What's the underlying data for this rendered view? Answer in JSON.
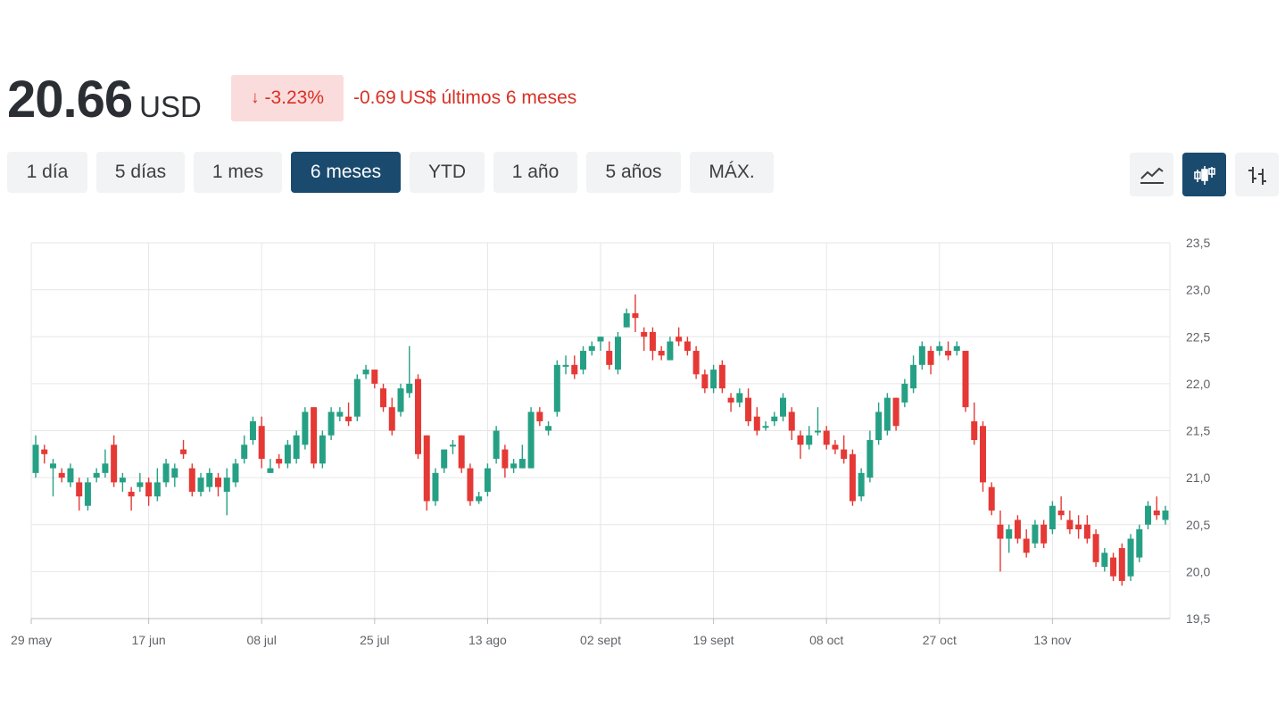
{
  "quote": {
    "price": "20.66",
    "currency": "USD",
    "change_pct": "-3.23%",
    "change_abs": "-0.69",
    "change_suffix": "US$ últimos 6 meses"
  },
  "ranges": [
    {
      "label": "1 día",
      "active": false
    },
    {
      "label": "5 días",
      "active": false
    },
    {
      "label": "1 mes",
      "active": false
    },
    {
      "label": "6 meses",
      "active": true
    },
    {
      "label": "YTD",
      "active": false
    },
    {
      "label": "1 año",
      "active": false
    },
    {
      "label": "5 años",
      "active": false
    },
    {
      "label": "MÁX.",
      "active": false
    }
  ],
  "chart_types": [
    {
      "icon": "line-chart-icon",
      "active": false
    },
    {
      "icon": "candlestick-chart-icon",
      "active": true
    },
    {
      "icon": "ohlc-bars-icon",
      "active": false
    }
  ],
  "colors": {
    "up": "#26a085",
    "down": "#e53935",
    "accent": "#1a4a6e",
    "negative_text": "#d93025"
  },
  "chart_data": {
    "type": "candlestick",
    "title": "",
    "xlabel": "",
    "ylabel": "",
    "ylim": [
      19.5,
      23.5
    ],
    "y_ticks": [
      "23,5",
      "23,0",
      "22,5",
      "22,0",
      "21,5",
      "21,0",
      "20,5",
      "20,0",
      "19,5"
    ],
    "y_tick_values": [
      23.5,
      23.0,
      22.5,
      22.0,
      21.5,
      21.0,
      20.5,
      20.0,
      19.5
    ],
    "x_ticks": [
      {
        "label": "29 may",
        "index": 0
      },
      {
        "label": "17 jun",
        "index": 13
      },
      {
        "label": "08 jul",
        "index": 26
      },
      {
        "label": "25 jul",
        "index": 39
      },
      {
        "label": "13 ago",
        "index": 52
      },
      {
        "label": "02 sept",
        "index": 65
      },
      {
        "label": "19 sept",
        "index": 78
      },
      {
        "label": "08 oct",
        "index": 91
      },
      {
        "label": "27 oct",
        "index": 104
      },
      {
        "label": "13 nov",
        "index": 117
      }
    ],
    "grid": true,
    "candles": [
      [
        21.05,
        21.35,
        21.45,
        21.0
      ],
      [
        21.3,
        21.25,
        21.35,
        21.15
      ],
      [
        21.1,
        21.15,
        21.2,
        20.8
      ],
      [
        21.05,
        21.0,
        21.1,
        20.95
      ],
      [
        20.95,
        21.1,
        21.15,
        20.9
      ],
      [
        20.95,
        20.8,
        21.0,
        20.65
      ],
      [
        20.7,
        20.95,
        21.0,
        20.65
      ],
      [
        21.0,
        21.05,
        21.1,
        20.95
      ],
      [
        21.05,
        21.15,
        21.3,
        21.0
      ],
      [
        21.35,
        20.95,
        21.45,
        20.9
      ],
      [
        20.95,
        21.0,
        21.05,
        20.85
      ],
      [
        20.85,
        20.8,
        20.9,
        20.65
      ],
      [
        20.9,
        20.95,
        21.05,
        20.85
      ],
      [
        20.95,
        20.8,
        21.0,
        20.7
      ],
      [
        20.8,
        20.95,
        21.1,
        20.75
      ],
      [
        20.95,
        21.15,
        21.2,
        20.9
      ],
      [
        21.0,
        21.1,
        21.15,
        20.9
      ],
      [
        21.3,
        21.25,
        21.4,
        21.2
      ],
      [
        21.1,
        20.85,
        21.15,
        20.8
      ],
      [
        20.85,
        21.0,
        21.05,
        20.8
      ],
      [
        20.9,
        21.05,
        21.1,
        20.85
      ],
      [
        21.0,
        20.9,
        21.05,
        20.8
      ],
      [
        20.85,
        21.0,
        21.1,
        20.6
      ],
      [
        20.95,
        21.15,
        21.2,
        20.9
      ],
      [
        21.2,
        21.35,
        21.45,
        21.15
      ],
      [
        21.4,
        21.6,
        21.65,
        21.35
      ],
      [
        21.55,
        21.2,
        21.65,
        21.1
      ],
      [
        21.05,
        21.1,
        21.2,
        21.05
      ],
      [
        21.2,
        21.15,
        21.25,
        21.1
      ],
      [
        21.15,
        21.35,
        21.4,
        21.1
      ],
      [
        21.2,
        21.45,
        21.5,
        21.15
      ],
      [
        21.35,
        21.7,
        21.75,
        21.3
      ],
      [
        21.75,
        21.15,
        21.75,
        21.1
      ],
      [
        21.15,
        21.45,
        21.5,
        21.1
      ],
      [
        21.45,
        21.7,
        21.75,
        21.4
      ],
      [
        21.65,
        21.7,
        21.75,
        21.6
      ],
      [
        21.65,
        21.6,
        21.8,
        21.55
      ],
      [
        21.65,
        22.05,
        22.1,
        21.6
      ],
      [
        22.1,
        22.15,
        22.2,
        22.05
      ],
      [
        22.15,
        22.0,
        22.15,
        21.95
      ],
      [
        21.95,
        21.75,
        22.0,
        21.7
      ],
      [
        21.75,
        21.5,
        21.85,
        21.45
      ],
      [
        21.7,
        21.95,
        22.0,
        21.65
      ],
      [
        21.9,
        22.0,
        22.4,
        21.85
      ],
      [
        22.05,
        21.25,
        22.1,
        21.2
      ],
      [
        21.45,
        20.75,
        21.45,
        20.65
      ],
      [
        20.75,
        21.05,
        21.1,
        20.7
      ],
      [
        21.1,
        21.3,
        21.3,
        21.05
      ],
      [
        21.35,
        21.35,
        21.4,
        21.25
      ],
      [
        21.45,
        21.1,
        21.45,
        21.05
      ],
      [
        21.1,
        20.75,
        21.15,
        20.7
      ],
      [
        20.75,
        20.8,
        20.85,
        20.72
      ],
      [
        20.85,
        21.1,
        21.15,
        20.8
      ],
      [
        21.2,
        21.5,
        21.55,
        21.15
      ],
      [
        21.3,
        21.1,
        21.35,
        21.0
      ],
      [
        21.1,
        21.15,
        21.2,
        21.05
      ],
      [
        21.1,
        21.2,
        21.35,
        21.1
      ],
      [
        21.1,
        21.7,
        21.75,
        21.1
      ],
      [
        21.7,
        21.6,
        21.75,
        21.55
      ],
      [
        21.5,
        21.55,
        21.6,
        21.45
      ],
      [
        21.7,
        22.2,
        22.25,
        21.65
      ],
      [
        22.2,
        22.2,
        22.3,
        22.1
      ],
      [
        22.2,
        22.1,
        22.3,
        22.05
      ],
      [
        22.15,
        22.35,
        22.4,
        22.1
      ],
      [
        22.35,
        22.4,
        22.45,
        22.3
      ],
      [
        22.45,
        22.5,
        22.5,
        22.35
      ],
      [
        22.35,
        22.2,
        22.45,
        22.15
      ],
      [
        22.15,
        22.5,
        22.55,
        22.1
      ],
      [
        22.6,
        22.75,
        22.8,
        22.6
      ],
      [
        22.75,
        22.7,
        22.95,
        22.55
      ],
      [
        22.55,
        22.5,
        22.6,
        22.35
      ],
      [
        22.55,
        22.35,
        22.6,
        22.25
      ],
      [
        22.35,
        22.3,
        22.4,
        22.25
      ],
      [
        22.25,
        22.45,
        22.5,
        22.25
      ],
      [
        22.5,
        22.45,
        22.6,
        22.4
      ],
      [
        22.45,
        22.35,
        22.5,
        22.3
      ],
      [
        22.35,
        22.1,
        22.4,
        22.05
      ],
      [
        22.1,
        21.95,
        22.15,
        21.9
      ],
      [
        21.95,
        22.15,
        22.2,
        21.9
      ],
      [
        22.2,
        21.95,
        22.25,
        21.9
      ],
      [
        21.85,
        21.8,
        21.9,
        21.7
      ],
      [
        21.8,
        21.9,
        21.95,
        21.75
      ],
      [
        21.85,
        21.6,
        21.95,
        21.55
      ],
      [
        21.65,
        21.5,
        21.75,
        21.45
      ],
      [
        21.55,
        21.55,
        21.6,
        21.5
      ],
      [
        21.6,
        21.65,
        21.7,
        21.55
      ],
      [
        21.65,
        21.85,
        21.9,
        21.6
      ],
      [
        21.7,
        21.5,
        21.75,
        21.4
      ],
      [
        21.45,
        21.35,
        21.5,
        21.2
      ],
      [
        21.35,
        21.45,
        21.55,
        21.3
      ],
      [
        21.5,
        21.5,
        21.75,
        21.45
      ],
      [
        21.5,
        21.35,
        21.55,
        21.3
      ],
      [
        21.35,
        21.3,
        21.4,
        21.25
      ],
      [
        21.3,
        21.2,
        21.45,
        21.15
      ],
      [
        21.25,
        20.75,
        21.3,
        20.7
      ],
      [
        20.8,
        21.05,
        21.1,
        20.75
      ],
      [
        21.0,
        21.4,
        21.5,
        20.95
      ],
      [
        21.4,
        21.7,
        21.8,
        21.35
      ],
      [
        21.5,
        21.85,
        21.9,
        21.45
      ],
      [
        21.85,
        21.55,
        21.85,
        21.5
      ],
      [
        21.8,
        22.0,
        22.05,
        21.75
      ],
      [
        21.95,
        22.2,
        22.3,
        21.9
      ],
      [
        22.2,
        22.4,
        22.45,
        22.15
      ],
      [
        22.35,
        22.2,
        22.4,
        22.1
      ],
      [
        22.35,
        22.4,
        22.45,
        22.3
      ],
      [
        22.35,
        22.3,
        22.45,
        22.25
      ],
      [
        22.35,
        22.4,
        22.45,
        22.3
      ],
      [
        22.35,
        21.75,
        22.35,
        21.7
      ],
      [
        21.6,
        21.4,
        21.8,
        21.35
      ],
      [
        21.55,
        20.95,
        21.6,
        20.85
      ],
      [
        20.9,
        20.65,
        20.95,
        20.6
      ],
      [
        20.5,
        20.35,
        20.65,
        20.0
      ],
      [
        20.35,
        20.45,
        20.5,
        20.2
      ],
      [
        20.55,
        20.35,
        20.6,
        20.3
      ],
      [
        20.35,
        20.2,
        20.45,
        20.15
      ],
      [
        20.3,
        20.5,
        20.55,
        20.25
      ],
      [
        20.5,
        20.3,
        20.55,
        20.25
      ],
      [
        20.45,
        20.7,
        20.75,
        20.4
      ],
      [
        20.65,
        20.6,
        20.8,
        20.55
      ],
      [
        20.55,
        20.45,
        20.65,
        20.4
      ],
      [
        20.5,
        20.45,
        20.6,
        20.35
      ],
      [
        20.5,
        20.35,
        20.6,
        20.3
      ],
      [
        20.4,
        20.1,
        20.45,
        20.05
      ],
      [
        20.05,
        20.2,
        20.25,
        20.0
      ],
      [
        20.15,
        19.95,
        20.2,
        19.9
      ],
      [
        20.25,
        19.9,
        20.3,
        19.85
      ],
      [
        19.95,
        20.35,
        20.4,
        19.9
      ],
      [
        20.15,
        20.45,
        20.5,
        20.1
      ],
      [
        20.5,
        20.7,
        20.75,
        20.45
      ],
      [
        20.65,
        20.6,
        20.8,
        20.55
      ],
      [
        20.55,
        20.65,
        20.7,
        20.5
      ]
    ]
  }
}
